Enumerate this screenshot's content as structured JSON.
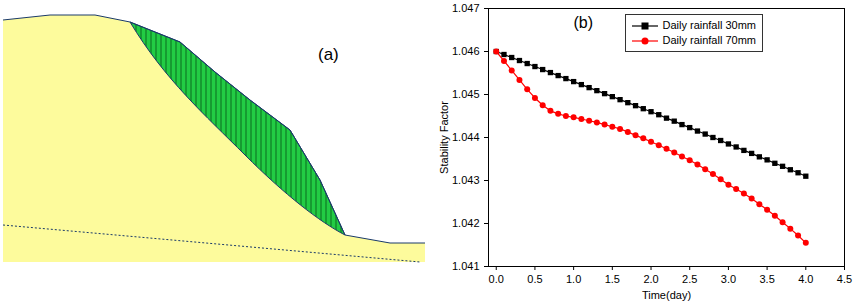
{
  "diagram": {
    "label": "(a)"
  },
  "chart_data": {
    "type": "line",
    "annotations": [
      "(b)"
    ],
    "x_label": "Time(day)",
    "y_label": "Stability Factor",
    "x": [
      0.0,
      0.1,
      0.2,
      0.3,
      0.4,
      0.5,
      0.6,
      0.7,
      0.8,
      0.9,
      1.0,
      1.1,
      1.2,
      1.3,
      1.4,
      1.5,
      1.6,
      1.7,
      1.8,
      1.9,
      2.0,
      2.1,
      2.2,
      2.3,
      2.4,
      2.5,
      2.6,
      2.7,
      2.8,
      2.9,
      3.0,
      3.1,
      3.2,
      3.3,
      3.4,
      3.5,
      3.6,
      3.7,
      3.8,
      3.9,
      4.0
    ],
    "series": [
      {
        "name": "Daily rainfall 30mm",
        "color": "#000000",
        "marker": "square",
        "values": [
          1.046,
          1.04593,
          1.04586,
          1.04579,
          1.04572,
          1.04565,
          1.04558,
          1.04551,
          1.04544,
          1.04537,
          1.0453,
          1.04523,
          1.04516,
          1.04509,
          1.04502,
          1.04495,
          1.04488,
          1.04481,
          1.04474,
          1.04467,
          1.0446,
          1.04453,
          1.04445,
          1.04438,
          1.0443,
          1.04423,
          1.04415,
          1.04408,
          1.044,
          1.04393,
          1.04385,
          1.04378,
          1.0437,
          1.04363,
          1.04355,
          1.04348,
          1.0434,
          1.04333,
          1.04325,
          1.04318,
          1.0431
        ]
      },
      {
        "name": "Daily rainfall 70mm",
        "color": "#ff0000",
        "marker": "circle",
        "values": [
          1.046,
          1.04578,
          1.04556,
          1.04534,
          1.04512,
          1.04492,
          1.04475,
          1.04462,
          1.04455,
          1.0445,
          1.04447,
          1.04443,
          1.04439,
          1.04435,
          1.0443,
          1.04425,
          1.0442,
          1.04413,
          1.04405,
          1.04398,
          1.0439,
          1.04382,
          1.04374,
          1.04365,
          1.04356,
          1.04347,
          1.04337,
          1.04326,
          1.04315,
          1.04303,
          1.0429,
          1.0428,
          1.0427,
          1.04258,
          1.04245,
          1.04232,
          1.04218,
          1.04203,
          1.04188,
          1.04172,
          1.04155
        ]
      }
    ],
    "xlim": [
      -0.1,
      4.5
    ],
    "xticks": [
      {
        "value": 0,
        "label": "0.0"
      },
      0.5,
      {
        "value": 1,
        "label": "1.0"
      },
      1.5,
      {
        "value": 2,
        "label": "2.0"
      },
      2.5,
      {
        "value": 3,
        "label": "3.0"
      },
      3.5,
      {
        "value": 4,
        "label": "4.0"
      },
      4.5
    ],
    "ylim": [
      1.041,
      1.047
    ],
    "yticks": [
      1.041,
      1.042,
      1.043,
      1.044,
      1.045,
      1.046,
      1.047
    ],
    "grid": false,
    "legend": "upper center"
  }
}
